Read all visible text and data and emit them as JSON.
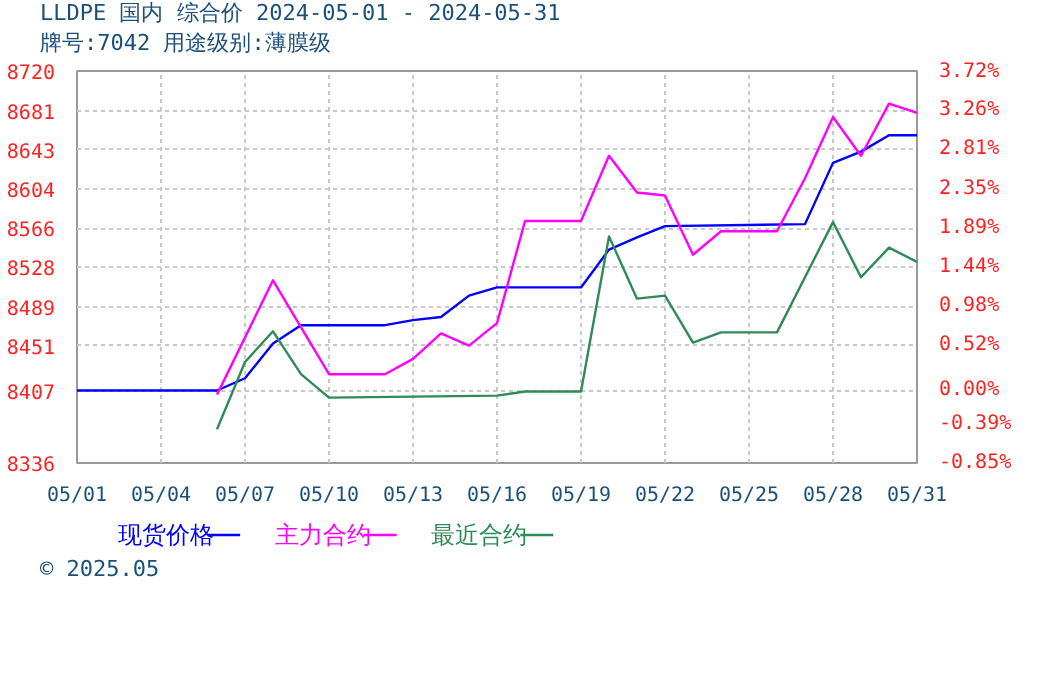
{
  "chart_data": {
    "type": "line",
    "title": "LLDPE 国内 综合价 2024-05-01 - 2024-05-31",
    "subtitle": "牌号:7042 用途级别:薄膜级",
    "annotations": [
      "© 2025.05"
    ],
    "xlim": [
      "2024-05-01",
      "2024-05-31"
    ],
    "xticks": [
      {
        "value": "2024-05-01",
        "label": "05/01"
      },
      {
        "value": "2024-05-04",
        "label": "05/04"
      },
      {
        "value": "2024-05-07",
        "label": "05/07"
      },
      {
        "value": "2024-05-10",
        "label": "05/10"
      },
      {
        "value": "2024-05-13",
        "label": "05/13"
      },
      {
        "value": "2024-05-16",
        "label": "05/16"
      },
      {
        "value": "2024-05-19",
        "label": "05/19"
      },
      {
        "value": "2024-05-22",
        "label": "05/22"
      },
      {
        "value": "2024-05-25",
        "label": "05/25"
      },
      {
        "value": "2024-05-28",
        "label": "05/28"
      },
      {
        "value": "2024-05-31",
        "label": "05/31"
      }
    ],
    "ylim": [
      8336,
      8720
    ],
    "yticks": [
      8336,
      8407,
      8451,
      8489,
      8528,
      8566,
      8604,
      8643,
      8681,
      8720
    ],
    "y2lim": [
      -0.85,
      3.72
    ],
    "y2ticks": [
      {
        "value": -0.85,
        "label": "-0.85%"
      },
      {
        "value": -0.39,
        "label": "-0.39%"
      },
      {
        "value": 0,
        "label": "0.00%"
      },
      {
        "value": 0.52,
        "label": "0.52%"
      },
      {
        "value": 0.98,
        "label": "0.98%"
      },
      {
        "value": 1.44,
        "label": "1.44%"
      },
      {
        "value": 1.89,
        "label": "1.89%"
      },
      {
        "value": 2.35,
        "label": "2.35%"
      },
      {
        "value": 2.81,
        "label": "2.81%"
      },
      {
        "value": 3.26,
        "label": "3.26%"
      },
      {
        "value": 3.72,
        "label": "3.72%"
      }
    ],
    "grid": true,
    "legend": "bottom",
    "marker": "none",
    "line_style": "solid",
    "series": [
      {
        "name": "现货价格",
        "color": "#0000ff",
        "x": [
          "2024-05-01",
          "2024-05-06",
          "2024-05-07",
          "2024-05-08",
          "2024-05-09",
          "2024-05-12",
          "2024-05-13",
          "2024-05-14",
          "2024-05-15",
          "2024-05-16",
          "2024-05-19",
          "2024-05-20",
          "2024-05-21",
          "2024-05-22",
          "2024-05-27",
          "2024-05-28",
          "2024-05-29",
          "2024-05-30",
          "2024-05-31"
        ],
        "values": [
          8407,
          8407,
          8419,
          8453,
          8471,
          8471,
          8476,
          8479,
          8500,
          8508,
          8508,
          8545,
          8557,
          8568,
          8570,
          8630,
          8641,
          8657,
          8657
        ]
      },
      {
        "name": "主力合约",
        "color": "#ff00ff",
        "x": [
          "2024-05-06",
          "2024-05-08",
          "2024-05-10",
          "2024-05-12",
          "2024-05-13",
          "2024-05-14",
          "2024-05-15",
          "2024-05-16",
          "2024-05-17",
          "2024-05-19",
          "2024-05-20",
          "2024-05-21",
          "2024-05-22",
          "2024-05-23",
          "2024-05-24",
          "2024-05-26",
          "2024-05-27",
          "2024-05-28",
          "2024-05-29",
          "2024-05-30",
          "2024-05-31"
        ],
        "values": [
          8403,
          8515,
          8423,
          8423,
          8438,
          8463,
          8451,
          8473,
          8573,
          8573,
          8637,
          8601,
          8598,
          8540,
          8563,
          8563,
          8615,
          8675,
          8637,
          8688,
          8679
        ]
      },
      {
        "name": "最近合约",
        "color": "#2e8b57",
        "x": [
          "2024-05-06",
          "2024-05-07",
          "2024-05-08",
          "2024-05-09",
          "2024-05-10",
          "2024-05-13",
          "2024-05-16",
          "2024-05-17",
          "2024-05-19",
          "2024-05-20",
          "2024-05-21",
          "2024-05-22",
          "2024-05-23",
          "2024-05-24",
          "2024-05-26",
          "2024-05-28",
          "2024-05-29",
          "2024-05-30",
          "2024-05-31"
        ],
        "values": [
          8369,
          8435,
          8465,
          8423,
          8400,
          8401,
          8402,
          8406,
          8406,
          8558,
          8497,
          8500,
          8454,
          8464,
          8464,
          8572,
          8518,
          8547,
          8533
        ]
      }
    ]
  }
}
